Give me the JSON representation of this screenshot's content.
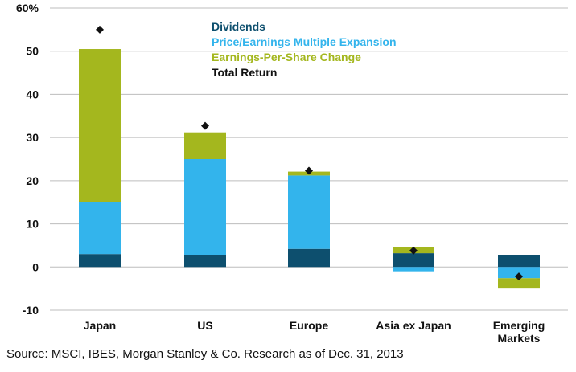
{
  "chart_data": {
    "type": "bar",
    "stacked": true,
    "categories": [
      "Japan",
      "US",
      "Europe",
      "Asia ex Japan",
      "Emerging|Markets"
    ],
    "series": [
      {
        "name": "Dividends",
        "color": "#0d4f6e",
        "values": [
          3,
          2.8,
          4.2,
          3.2,
          2.8
        ]
      },
      {
        "name": "Price/Earnings Multiple Expansion",
        "color": "#33b4ec",
        "values": [
          12,
          22.2,
          17,
          -1,
          -2.6
        ]
      },
      {
        "name": "Earnings-Per-Share Change",
        "color": "#a4b71e",
        "values": [
          35.5,
          6.2,
          0.9,
          1.5,
          -2.4
        ]
      }
    ],
    "total_return": {
      "name": "Total Return",
      "color": "#111111",
      "values": [
        55,
        32.7,
        22.3,
        3.8,
        -2.2
      ]
    },
    "y_ticks": [
      "60%",
      "50",
      "40",
      "30",
      "20",
      "10",
      "0",
      "-10"
    ],
    "ylim": [
      -10,
      60
    ],
    "grid": true,
    "legend_position": "top-center"
  },
  "source": "Source: MSCI, IBES, Morgan Stanley & Co. Research as of Dec. 31, 2013"
}
